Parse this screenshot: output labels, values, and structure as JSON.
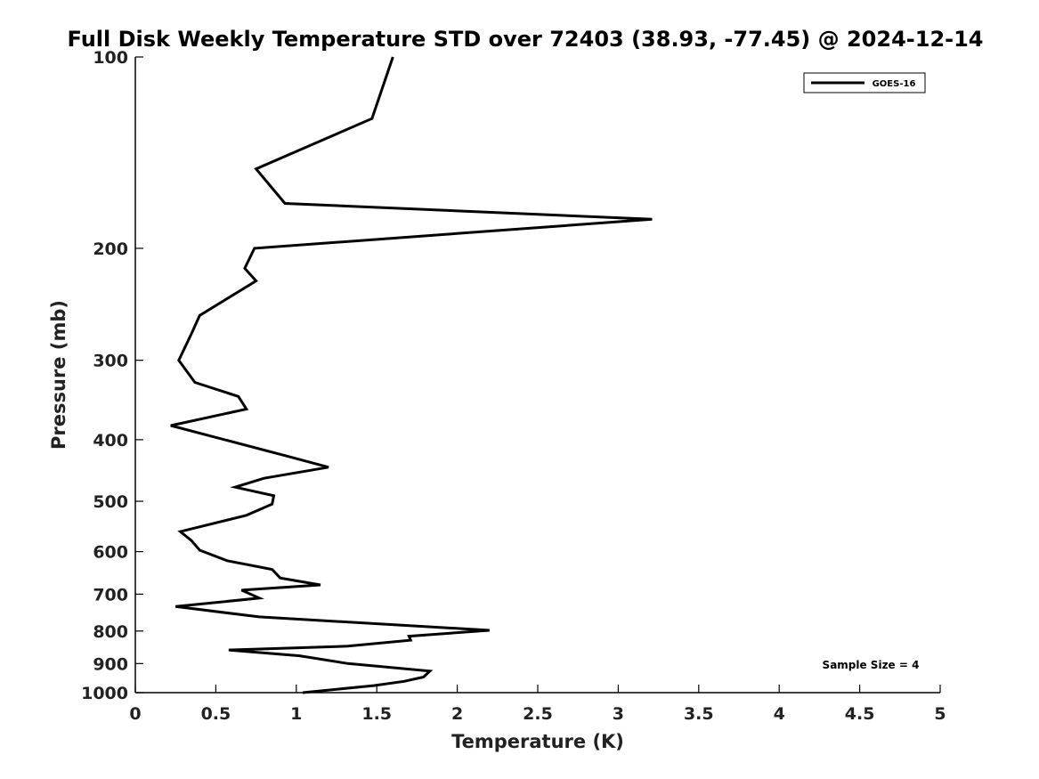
{
  "chart_data": {
    "type": "line",
    "title": "Full Disk Weekly Temperature STD over 72403 (38.93, -77.45) @ 2024-12-14",
    "xlabel": "Temperature (K)",
    "ylabel": "Pressure (mb)",
    "xlim": [
      0,
      5
    ],
    "ylim": [
      100,
      1000
    ],
    "yscale": "log",
    "y_inverted": true,
    "grid": false,
    "legend_position": "top-right",
    "xticks": [
      0,
      0.5,
      1,
      1.5,
      2,
      2.5,
      3,
      3.5,
      4,
      4.5,
      5
    ],
    "xtick_labels": [
      "0",
      "0.5",
      "1",
      "1.5",
      "2",
      "2.5",
      "3",
      "3.5",
      "4",
      "4.5",
      "5"
    ],
    "yticks": [
      100,
      200,
      300,
      400,
      500,
      600,
      700,
      800,
      900,
      1000
    ],
    "ytick_labels": [
      "100",
      "200",
      "300",
      "400",
      "500",
      "600",
      "700",
      "800",
      "900",
      "1000"
    ],
    "series": [
      {
        "name": "GOES-16",
        "color": "#000000",
        "points": [
          [
            1.6,
            100
          ],
          [
            1.47,
            125
          ],
          [
            0.75,
            150
          ],
          [
            0.93,
            170
          ],
          [
            3.21,
            180
          ],
          [
            0.74,
            200
          ],
          [
            0.68,
            215
          ],
          [
            0.75,
            225
          ],
          [
            0.4,
            255
          ],
          [
            0.35,
            272
          ],
          [
            0.27,
            300
          ],
          [
            0.37,
            325
          ],
          [
            0.64,
            342
          ],
          [
            0.69,
            358
          ],
          [
            0.22,
            380
          ],
          [
            0.95,
            425
          ],
          [
            1.2,
            442
          ],
          [
            0.8,
            460
          ],
          [
            0.62,
            475
          ],
          [
            0.86,
            490
          ],
          [
            0.85,
            505
          ],
          [
            0.69,
            526
          ],
          [
            0.28,
            558
          ],
          [
            0.35,
            577
          ],
          [
            0.4,
            597
          ],
          [
            0.57,
            620
          ],
          [
            0.85,
            640
          ],
          [
            0.9,
            660
          ],
          [
            1.15,
            677
          ],
          [
            0.66,
            690
          ],
          [
            0.77,
            710
          ],
          [
            0.25,
            732
          ],
          [
            0.77,
            760
          ],
          [
            2.2,
            798
          ],
          [
            1.7,
            815
          ],
          [
            1.71,
            827
          ],
          [
            1.32,
            845
          ],
          [
            0.58,
            857
          ],
          [
            1.02,
            875
          ],
          [
            1.32,
            900
          ],
          [
            1.83,
            925
          ],
          [
            1.79,
            945
          ],
          [
            1.67,
            960
          ],
          [
            1.48,
            975
          ],
          [
            1.04,
            1000
          ]
        ]
      }
    ],
    "annotations": [
      {
        "text": "Sample Size = 4",
        "position": "bottom-right"
      }
    ]
  }
}
